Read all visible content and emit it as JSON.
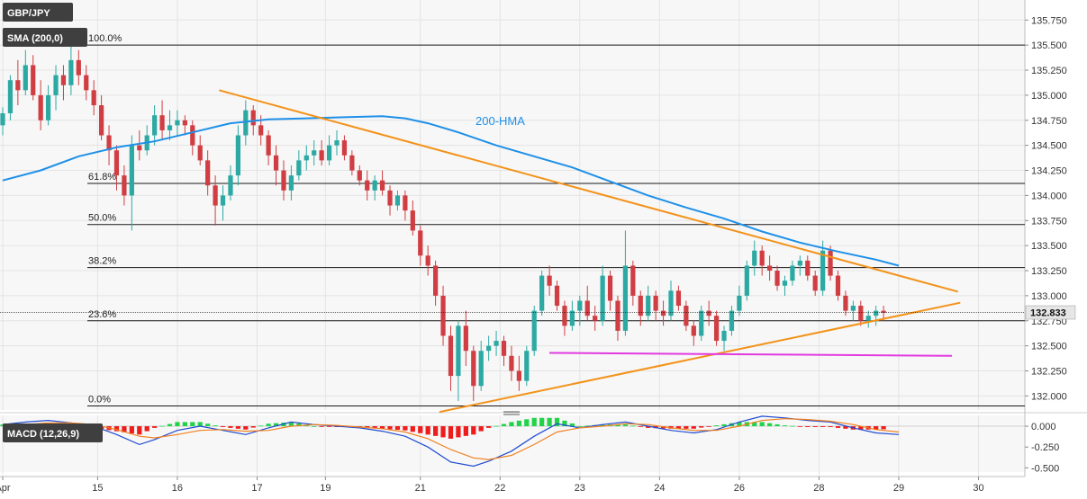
{
  "symbol": "GBP/JPY",
  "sma_label": "SMA (200,0)",
  "macd_label": "MACD (12,26,9)",
  "hma_label": "200-HMA",
  "current_price": "132.833",
  "colors": {
    "up": "#2ca9a3",
    "down": "#d03d42",
    "hma": "#1e90e8",
    "trendline": "#f39219",
    "support": "#e23ae0",
    "macd_line": "#1f4bd1",
    "signal_line": "#f08221",
    "hist_pos": "#22d34a",
    "hist_neg": "#ee1c1c",
    "badge_bg": "#3f3f3f",
    "price_tag": "#e6e6e6",
    "fib_line": "#1a1a1a"
  },
  "chart_data": {
    "type": "candlestick",
    "y_axis": {
      "range": [
        131.86,
        135.95
      ],
      "ticks": [
        "132.000",
        "132.250",
        "132.500",
        "132.750",
        "133.000",
        "133.250",
        "133.500",
        "133.750",
        "134.000",
        "134.250",
        "134.500",
        "134.750",
        "135.000",
        "135.250",
        "135.500",
        "135.750"
      ]
    },
    "x_axis": {
      "range": [
        0,
        132
      ],
      "labels": [
        {
          "x": 0,
          "text": "Apr"
        },
        {
          "x": 12.5,
          "text": "15"
        },
        {
          "x": 23,
          "text": "16"
        },
        {
          "x": 33.5,
          "text": "17"
        },
        {
          "x": 42.5,
          "text": "19"
        },
        {
          "x": 55,
          "text": "21"
        },
        {
          "x": 65.5,
          "text": "22"
        },
        {
          "x": 76,
          "text": "23"
        },
        {
          "x": 86.5,
          "text": "24"
        },
        {
          "x": 97,
          "text": "26"
        },
        {
          "x": 107.5,
          "text": "28"
        },
        {
          "x": 118,
          "text": "29"
        },
        {
          "x": 128.5,
          "text": "30"
        }
      ]
    },
    "fibonacci": [
      {
        "label": "100.0%",
        "value": 135.5
      },
      {
        "label": "61.8%",
        "value": 134.12
      },
      {
        "label": "50.0%",
        "value": 133.71
      },
      {
        "label": "38.2%",
        "value": 133.28
      },
      {
        "label": "23.6%",
        "value": 132.75
      },
      {
        "label": "0.0%",
        "value": 131.9
      }
    ],
    "trendlines": [
      {
        "name": "falling-resistance",
        "from": [
          28.5,
          135.05
        ],
        "to": [
          125.8,
          133.04
        ]
      },
      {
        "name": "rising-support",
        "from": [
          57.5,
          131.84
        ],
        "to": [
          126.1,
          132.93
        ]
      }
    ],
    "support_line": {
      "from": [
        72,
        132.43
      ],
      "to": [
        125,
        132.4
      ]
    },
    "hma_points": [
      [
        0,
        134.15
      ],
      [
        5,
        134.25
      ],
      [
        10,
        134.39
      ],
      [
        15,
        134.48
      ],
      [
        20,
        134.54
      ],
      [
        25,
        134.63
      ],
      [
        30,
        134.72
      ],
      [
        35,
        134.76
      ],
      [
        40,
        134.77
      ],
      [
        45,
        134.78
      ],
      [
        50,
        134.79
      ],
      [
        53,
        134.77
      ],
      [
        56,
        134.72
      ],
      [
        60,
        134.63
      ],
      [
        65,
        134.5
      ],
      [
        70,
        134.39
      ],
      [
        75,
        134.28
      ],
      [
        80,
        134.14
      ],
      [
        85,
        134.0
      ],
      [
        90,
        133.88
      ],
      [
        95,
        133.77
      ],
      [
        100,
        133.64
      ],
      [
        105,
        133.53
      ],
      [
        110,
        133.44
      ],
      [
        115,
        133.36
      ],
      [
        118,
        133.3
      ]
    ],
    "candles": [
      [
        134.7,
        134.88,
        134.6,
        134.82
      ],
      [
        134.82,
        135.2,
        134.75,
        135.15
      ],
      [
        135.15,
        135.35,
        134.9,
        135.05
      ],
      [
        135.05,
        135.45,
        135.0,
        135.3
      ],
      [
        135.3,
        135.4,
        134.95,
        135.0
      ],
      [
        135.0,
        135.15,
        134.65,
        134.75
      ],
      [
        134.75,
        135.1,
        134.7,
        135.0
      ],
      [
        135.0,
        135.3,
        134.85,
        135.2
      ],
      [
        135.2,
        135.3,
        134.95,
        135.1
      ],
      [
        135.1,
        135.55,
        135.0,
        135.35
      ],
      [
        135.35,
        135.45,
        135.1,
        135.2
      ],
      [
        135.2,
        135.3,
        134.95,
        135.05
      ],
      [
        135.05,
        135.15,
        134.8,
        134.9
      ],
      [
        134.9,
        135.0,
        134.55,
        134.6
      ],
      [
        134.6,
        134.7,
        134.3,
        134.45
      ],
      [
        134.45,
        134.5,
        134.05,
        134.2
      ],
      [
        134.2,
        134.3,
        133.9,
        134.0
      ],
      [
        134.0,
        134.6,
        133.65,
        134.5
      ],
      [
        134.5,
        134.65,
        134.35,
        134.45
      ],
      [
        134.45,
        134.7,
        134.4,
        134.6
      ],
      [
        134.6,
        134.9,
        134.5,
        134.8
      ],
      [
        134.8,
        134.95,
        134.55,
        134.65
      ],
      [
        134.65,
        134.85,
        134.55,
        134.7
      ],
      [
        134.7,
        134.85,
        134.6,
        134.75
      ],
      [
        134.75,
        134.8,
        134.6,
        134.7
      ],
      [
        134.7,
        134.75,
        134.4,
        134.5
      ],
      [
        134.5,
        134.6,
        134.3,
        134.35
      ],
      [
        134.35,
        134.45,
        134.0,
        134.1
      ],
      [
        134.1,
        134.2,
        133.7,
        133.9
      ],
      [
        133.9,
        134.1,
        133.75,
        134.0
      ],
      [
        134.0,
        134.3,
        133.95,
        134.2
      ],
      [
        134.2,
        134.7,
        134.1,
        134.6
      ],
      [
        134.6,
        134.95,
        134.5,
        134.85
      ],
      [
        134.85,
        134.9,
        134.6,
        134.7
      ],
      [
        134.7,
        134.8,
        134.5,
        134.6
      ],
      [
        134.6,
        134.65,
        134.3,
        134.4
      ],
      [
        134.4,
        134.5,
        134.1,
        134.25
      ],
      [
        134.25,
        134.35,
        133.95,
        134.05
      ],
      [
        134.05,
        134.3,
        133.95,
        134.2
      ],
      [
        134.2,
        134.45,
        134.15,
        134.35
      ],
      [
        134.35,
        134.5,
        134.25,
        134.4
      ],
      [
        134.4,
        134.55,
        134.3,
        134.45
      ],
      [
        134.45,
        134.55,
        134.3,
        134.35
      ],
      [
        134.35,
        134.6,
        134.3,
        134.5
      ],
      [
        134.5,
        134.65,
        134.4,
        134.55
      ],
      [
        134.55,
        134.6,
        134.35,
        134.4
      ],
      [
        134.4,
        134.45,
        134.2,
        134.25
      ],
      [
        134.25,
        134.3,
        134.1,
        134.15
      ],
      [
        134.15,
        134.25,
        133.95,
        134.05
      ],
      [
        134.05,
        134.2,
        133.95,
        134.15
      ],
      [
        134.15,
        134.25,
        134.0,
        134.05
      ],
      [
        134.05,
        134.1,
        133.8,
        133.9
      ],
      [
        133.9,
        134.05,
        133.85,
        134.0
      ],
      [
        134.0,
        134.05,
        133.75,
        133.85
      ],
      [
        133.85,
        133.95,
        133.6,
        133.65
      ],
      [
        133.65,
        133.7,
        133.3,
        133.4
      ],
      [
        133.4,
        133.5,
        133.2,
        133.3
      ],
      [
        133.3,
        133.35,
        132.9,
        133.0
      ],
      [
        133.0,
        133.1,
        132.5,
        132.6
      ],
      [
        132.6,
        132.7,
        132.05,
        132.2
      ],
      [
        132.2,
        132.75,
        131.95,
        132.7
      ],
      [
        132.7,
        132.85,
        132.3,
        132.45
      ],
      [
        132.45,
        132.5,
        131.95,
        132.1
      ],
      [
        132.1,
        132.55,
        132.05,
        132.45
      ],
      [
        132.45,
        132.6,
        132.35,
        132.5
      ],
      [
        132.5,
        132.65,
        132.4,
        132.55
      ],
      [
        132.55,
        132.6,
        132.3,
        132.4
      ],
      [
        132.4,
        132.5,
        132.15,
        132.25
      ],
      [
        132.25,
        132.4,
        132.05,
        132.15
      ],
      [
        132.15,
        132.5,
        132.1,
        132.45
      ],
      [
        132.45,
        132.9,
        132.4,
        132.85
      ],
      [
        132.85,
        133.25,
        132.8,
        133.2
      ],
      [
        133.2,
        133.3,
        133.0,
        133.1
      ],
      [
        133.1,
        133.15,
        132.85,
        132.9
      ],
      [
        132.9,
        132.95,
        132.6,
        132.7
      ],
      [
        132.7,
        132.95,
        132.65,
        132.85
      ],
      [
        132.85,
        133.0,
        132.7,
        132.95
      ],
      [
        132.95,
        133.1,
        132.75,
        132.8
      ],
      [
        132.8,
        132.9,
        132.65,
        132.75
      ],
      [
        132.75,
        133.3,
        132.7,
        133.2
      ],
      [
        133.2,
        133.25,
        132.85,
        132.95
      ],
      [
        132.95,
        133.0,
        132.55,
        132.65
      ],
      [
        132.65,
        133.65,
        132.6,
        133.3
      ],
      [
        133.3,
        133.35,
        132.9,
        133.0
      ],
      [
        133.0,
        133.05,
        132.7,
        132.8
      ],
      [
        132.8,
        133.1,
        132.75,
        133.0
      ],
      [
        133.0,
        133.05,
        132.75,
        132.85
      ],
      [
        132.85,
        132.95,
        132.7,
        132.8
      ],
      [
        132.8,
        133.15,
        132.75,
        133.05
      ],
      [
        133.05,
        133.1,
        132.85,
        132.9
      ],
      [
        132.9,
        132.95,
        132.65,
        132.7
      ],
      [
        132.7,
        132.75,
        132.5,
        132.6
      ],
      [
        132.6,
        132.9,
        132.55,
        132.85
      ],
      [
        132.85,
        132.95,
        132.7,
        132.8
      ],
      [
        132.8,
        132.85,
        132.5,
        132.55
      ],
      [
        132.55,
        132.7,
        132.45,
        132.65
      ],
      [
        132.65,
        132.9,
        132.6,
        132.85
      ],
      [
        132.85,
        133.1,
        132.8,
        133.0
      ],
      [
        133.0,
        133.35,
        132.95,
        133.3
      ],
      [
        133.3,
        133.55,
        133.2,
        133.45
      ],
      [
        133.45,
        133.5,
        133.2,
        133.3
      ],
      [
        133.3,
        133.4,
        133.15,
        133.25
      ],
      [
        133.25,
        133.3,
        133.05,
        133.1
      ],
      [
        133.1,
        133.2,
        133.0,
        133.15
      ],
      [
        133.15,
        133.35,
        133.1,
        133.3
      ],
      [
        133.3,
        133.4,
        133.2,
        133.35
      ],
      [
        133.35,
        133.4,
        133.15,
        133.2
      ],
      [
        133.2,
        133.25,
        133.0,
        133.05
      ],
      [
        133.05,
        133.55,
        133.0,
        133.45
      ],
      [
        133.45,
        133.5,
        133.15,
        133.2
      ],
      [
        133.2,
        133.25,
        132.95,
        133.0
      ],
      [
        133.0,
        133.05,
        132.8,
        132.85
      ],
      [
        132.85,
        132.95,
        132.75,
        132.9
      ],
      [
        132.9,
        132.95,
        132.7,
        132.75
      ],
      [
        132.75,
        132.85,
        132.68,
        132.8
      ],
      [
        132.8,
        132.9,
        132.7,
        132.85
      ],
      [
        132.85,
        132.9,
        132.75,
        132.83
      ]
    ],
    "macd": {
      "y_axis": {
        "range": [
          -0.55,
          0.13
        ],
        "ticks": [
          "0.000",
          "-0.250",
          "-0.500"
        ]
      },
      "macd_line": [
        [
          0,
          0.02
        ],
        [
          3,
          0.05
        ],
        [
          6,
          0.07
        ],
        [
          9,
          0.04
        ],
        [
          12,
          0.0
        ],
        [
          15,
          -0.1
        ],
        [
          18,
          -0.22
        ],
        [
          20,
          -0.16
        ],
        [
          23,
          -0.05
        ],
        [
          26,
          0.0
        ],
        [
          29,
          -0.05
        ],
        [
          32,
          -0.1
        ],
        [
          35,
          -0.02
        ],
        [
          38,
          0.05
        ],
        [
          41,
          0.02
        ],
        [
          44,
          0.0
        ],
        [
          47,
          -0.02
        ],
        [
          50,
          -0.06
        ],
        [
          53,
          -0.12
        ],
        [
          56,
          -0.25
        ],
        [
          59,
          -0.43
        ],
        [
          62,
          -0.48
        ],
        [
          64,
          -0.42
        ],
        [
          67,
          -0.3
        ],
        [
          70,
          -0.12
        ],
        [
          73,
          0.03
        ],
        [
          76,
          -0.02
        ],
        [
          79,
          0.02
        ],
        [
          82,
          0.05
        ],
        [
          85,
          0.0
        ],
        [
          88,
          -0.05
        ],
        [
          91,
          -0.08
        ],
        [
          94,
          -0.04
        ],
        [
          97,
          0.05
        ],
        [
          100,
          0.12
        ],
        [
          103,
          0.1
        ],
        [
          106,
          0.07
        ],
        [
          109,
          0.05
        ],
        [
          112,
          -0.02
        ],
        [
          115,
          -0.08
        ],
        [
          118,
          -0.1
        ]
      ],
      "signal_line": [
        [
          0,
          0.0
        ],
        [
          3,
          0.02
        ],
        [
          6,
          0.04
        ],
        [
          9,
          0.04
        ],
        [
          12,
          0.02
        ],
        [
          15,
          -0.04
        ],
        [
          18,
          -0.12
        ],
        [
          20,
          -0.14
        ],
        [
          23,
          -0.1
        ],
        [
          26,
          -0.05
        ],
        [
          29,
          -0.04
        ],
        [
          32,
          -0.06
        ],
        [
          35,
          -0.05
        ],
        [
          38,
          0.0
        ],
        [
          41,
          0.02
        ],
        [
          44,
          0.01
        ],
        [
          47,
          -0.01
        ],
        [
          50,
          -0.03
        ],
        [
          53,
          -0.07
        ],
        [
          56,
          -0.15
        ],
        [
          59,
          -0.28
        ],
        [
          62,
          -0.38
        ],
        [
          64,
          -0.4
        ],
        [
          67,
          -0.35
        ],
        [
          70,
          -0.22
        ],
        [
          73,
          -0.07
        ],
        [
          76,
          -0.02
        ],
        [
          79,
          0.0
        ],
        [
          82,
          0.03
        ],
        [
          85,
          0.02
        ],
        [
          88,
          -0.02
        ],
        [
          91,
          -0.05
        ],
        [
          94,
          -0.05
        ],
        [
          97,
          0.0
        ],
        [
          100,
          0.07
        ],
        [
          103,
          0.09
        ],
        [
          106,
          0.08
        ],
        [
          109,
          0.06
        ],
        [
          112,
          0.02
        ],
        [
          115,
          -0.04
        ],
        [
          118,
          -0.07
        ]
      ]
    }
  }
}
